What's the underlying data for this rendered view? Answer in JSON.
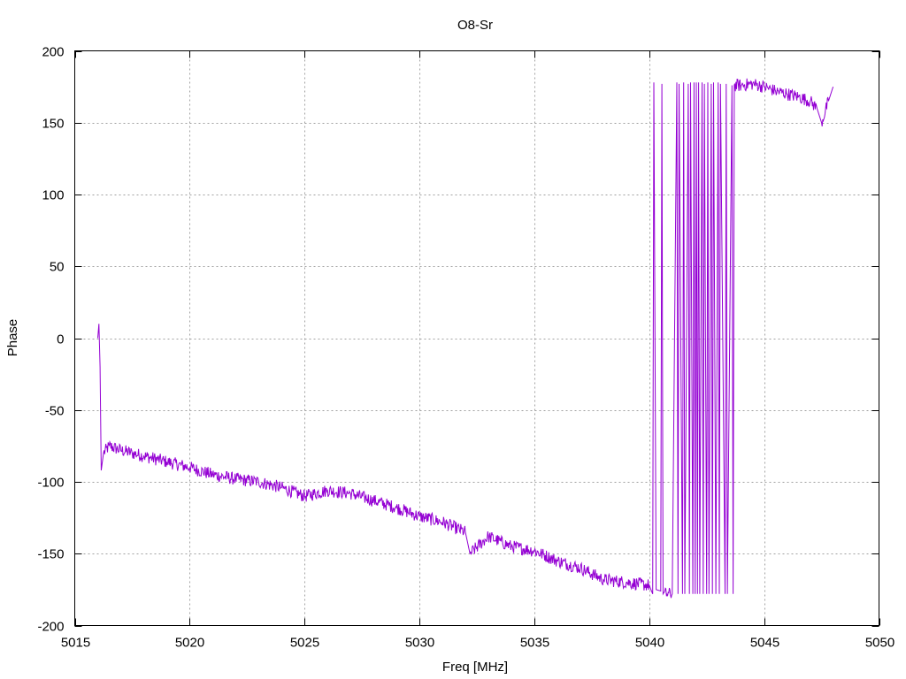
{
  "chart_data": {
    "type": "line",
    "title": "O8-Sr",
    "xlabel": "Freq [MHz]",
    "ylabel": "Phase",
    "xlim": [
      5015,
      5050
    ],
    "ylim": [
      -200,
      200
    ],
    "x_ticks": [
      5015,
      5020,
      5025,
      5030,
      5035,
      5040,
      5045,
      5050
    ],
    "y_ticks": [
      -200,
      -150,
      -100,
      -50,
      0,
      50,
      100,
      150,
      200
    ],
    "x_tick_labels": [
      "5015",
      "5020",
      "5025",
      "5030",
      "5035",
      "5040",
      "5045",
      "5050"
    ],
    "y_tick_labels": [
      "-200",
      "-150",
      "-100",
      "-50",
      "0",
      "50",
      "100",
      "150",
      "200"
    ],
    "grid": true,
    "legend": "none",
    "series": [
      {
        "color": "#9400d3",
        "x": [
          5016.0,
          5016.05,
          5016.1,
          5016.15,
          5016.25,
          5016.5,
          5017.0,
          5017.5,
          5018.0,
          5019.0,
          5020.0,
          5021.0,
          5022.0,
          5023.0,
          5024.0,
          5025.0,
          5026.0,
          5027.0,
          5028.0,
          5029.0,
          5030.0,
          5031.0,
          5032.0,
          5032.2,
          5033.0,
          5034.0,
          5035.0,
          5036.0,
          5037.0,
          5038.0,
          5039.0,
          5040.0,
          5040.15,
          5040.2,
          5040.3,
          5040.5,
          5040.55,
          5040.6,
          5041.0,
          5041.2,
          5041.25,
          5041.3,
          5041.45,
          5041.5,
          5041.55,
          5041.7,
          5041.75,
          5041.8,
          5041.9,
          5041.95,
          5042.0,
          5042.05,
          5042.1,
          5042.15,
          5042.2,
          5042.3,
          5042.35,
          5042.4,
          5042.5,
          5042.55,
          5042.6,
          5042.7,
          5042.75,
          5042.8,
          5042.9,
          5043.0,
          5043.05,
          5043.1,
          5043.3,
          5043.35,
          5043.4,
          5043.6,
          5043.65,
          5043.7,
          5044.0,
          5044.5,
          5045.0,
          5045.5,
          5046.0,
          5046.5,
          5047.0,
          5047.3,
          5047.5,
          5047.8,
          5048.0
        ],
        "y": [
          0,
          10,
          -20,
          -92,
          -80,
          -75,
          -78,
          -80,
          -82,
          -86,
          -90,
          -95,
          -98,
          -100,
          -104,
          -110,
          -106,
          -108,
          -113,
          -118,
          -124,
          -128,
          -135,
          -150,
          -138,
          -145,
          -148,
          -155,
          -160,
          -168,
          -170,
          -172,
          -178,
          178,
          -175,
          -176,
          177,
          -178,
          -178,
          178,
          -178,
          177,
          -178,
          178,
          -178,
          177,
          -178,
          178,
          -178,
          178,
          -178,
          178,
          -178,
          178,
          -178,
          178,
          -178,
          177,
          -178,
          178,
          -178,
          177,
          -178,
          178,
          -178,
          178,
          -178,
          177,
          -178,
          177,
          -178,
          176,
          -178,
          176,
          176,
          177,
          175,
          172,
          170,
          168,
          165,
          160,
          150,
          165,
          175
        ]
      }
    ]
  }
}
